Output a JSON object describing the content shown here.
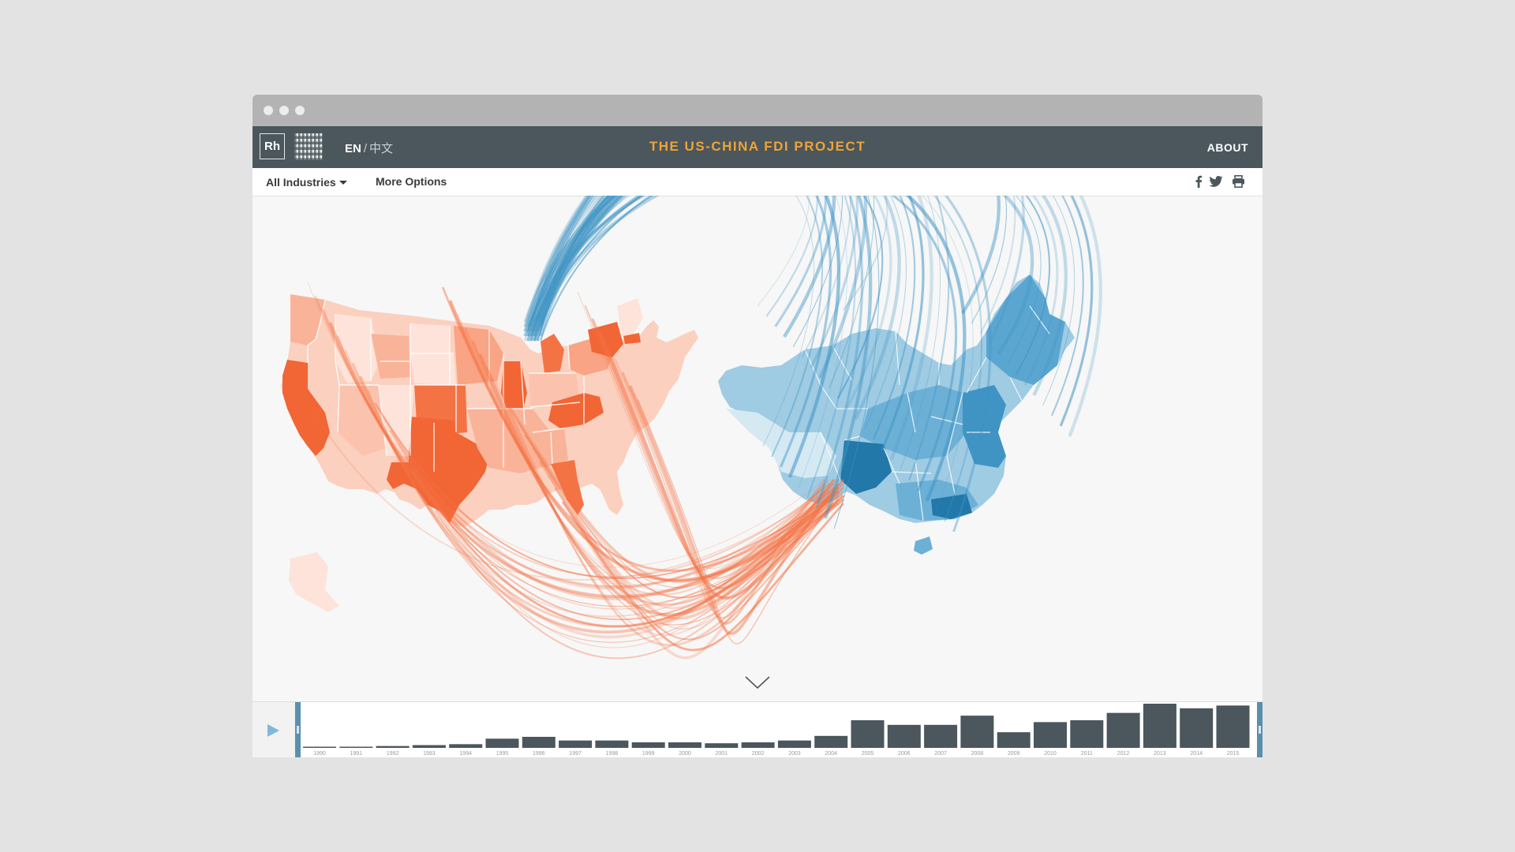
{
  "header": {
    "logo": "Rh",
    "lang_en": "EN",
    "lang_sep": "/",
    "lang_zh": "中文",
    "title": "THE US-CHINA FDI PROJECT",
    "about": "ABOUT"
  },
  "toolbar": {
    "industries_label": "All Industries",
    "more_options_label": "More Options"
  },
  "icons": {
    "facebook": "facebook-icon",
    "twitter": "twitter-icon",
    "print": "print-icon",
    "scroll": "chevron-down-icon",
    "play": "play-icon"
  },
  "colors": {
    "us_scale": [
      "#fde3d9",
      "#fbc3ae",
      "#f79977",
      "#f47345",
      "#f26535"
    ],
    "china_scale": [
      "#d5e9f3",
      "#9fcbe3",
      "#6cb0d6",
      "#3f94c4",
      "#2278a8"
    ],
    "title_accent": "#f0a336",
    "topbar": "#4b575c",
    "bars": "#4b575c"
  },
  "timeline": {
    "years": [
      "1990",
      "1991",
      "1992",
      "1993",
      "1994",
      "1995",
      "1996",
      "1997",
      "1998",
      "1999",
      "2000",
      "2001",
      "2002",
      "2003",
      "2004",
      "2005",
      "2006",
      "2007",
      "2008",
      "2009",
      "2010",
      "2011",
      "2012",
      "2013",
      "2014",
      "2015"
    ],
    "values": [
      1,
      1,
      2,
      3,
      4,
      10,
      12,
      8,
      8,
      6,
      6,
      5,
      6,
      8,
      13,
      30,
      25,
      25,
      35,
      17,
      28,
      30,
      38,
      48,
      43,
      46
    ]
  }
}
